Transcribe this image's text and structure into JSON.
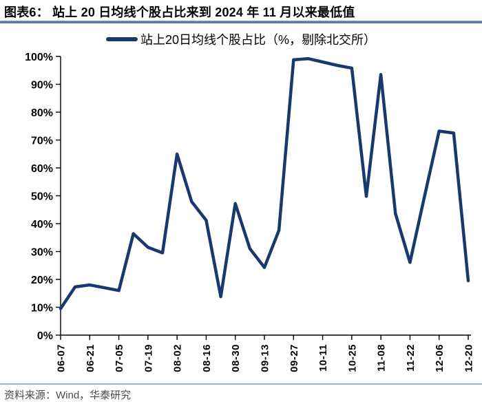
{
  "header": {
    "title": "图表6：  站上 20 日均线个股占比来到 2024 年 11 月以来最低值"
  },
  "legend": {
    "label": "站上20日均线个股占比（%，剔除北交所）"
  },
  "footer": {
    "source": "资料来源：Wind，华泰研究"
  },
  "colors": {
    "line": "#17396D",
    "axis": "#000000",
    "tick_text": "#000000",
    "title_rule": "#5B7DB1",
    "footer_rule": "#9FB2CE",
    "source_text": "#4A4A4A"
  },
  "chart_data": {
    "type": "line",
    "title": "站上 20 日均线个股占比来到 2024 年 11 月以来最低值",
    "legend": "站上20日均线个股占比（%，剔除北交所）",
    "legend_position": "top-center",
    "grid": false,
    "xlabel": "",
    "ylabel": "",
    "ylim": [
      0,
      100
    ],
    "y_ticks_percent": [
      0,
      10,
      20,
      30,
      40,
      50,
      60,
      70,
      80,
      90,
      100
    ],
    "x_tick_every": 2,
    "x": [
      "06-07",
      "06-14",
      "06-21",
      "06-28",
      "07-05",
      "07-12",
      "07-19",
      "07-26",
      "08-02",
      "08-09",
      "08-16",
      "08-23",
      "08-30",
      "09-06",
      "09-13",
      "09-20",
      "09-27",
      "10-04",
      "10-11",
      "10-18",
      "10-25",
      "11-01",
      "11-08",
      "11-15",
      "11-22",
      "11-29",
      "12-06",
      "12-13",
      "12-20"
    ],
    "values": [
      9.5,
      17.3,
      18.0,
      17.0,
      16.0,
      36.4,
      31.5,
      29.5,
      65.0,
      47.9,
      41.2,
      13.8,
      47.2,
      31.0,
      24.3,
      37.6,
      98.8,
      99.2,
      98.0,
      96.8,
      95.8,
      49.8,
      93.5,
      43.6,
      26.1,
      49.9,
      73.2,
      72.5,
      19.5
    ]
  }
}
